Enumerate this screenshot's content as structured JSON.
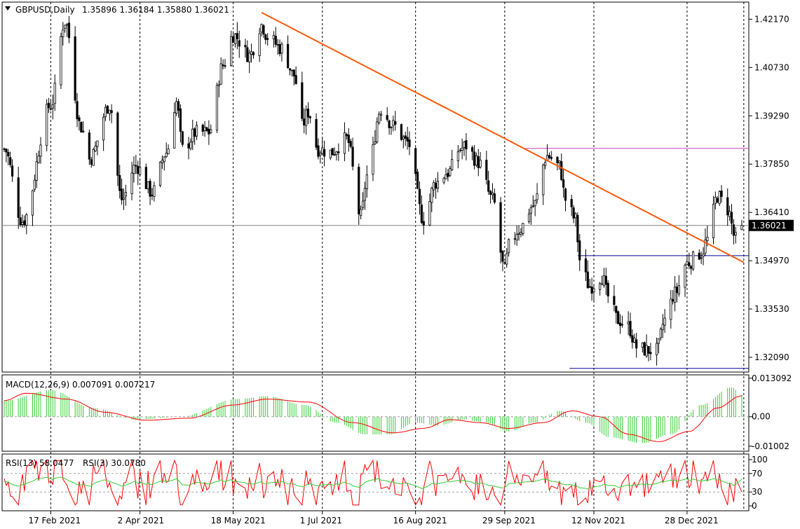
{
  "main_panel": {
    "symbol_timeframe": "GBPUSD,Daily",
    "ohlc": "1.35896 1.36184 1.35880 1.36021",
    "current_price": "1.36021",
    "price_labels": [
      "1.42170",
      "1.40730",
      "1.39290",
      "1.37850",
      "1.36410",
      "1.34970",
      "1.33530",
      "1.32090"
    ]
  },
  "macd_panel": {
    "label": "MACD(12,26,9) 0.007091 0.007217",
    "axis_labels": [
      "0.013092",
      "0.00",
      "-0.01002"
    ]
  },
  "rsi_panel": {
    "label_rsi13": "RSI(13) 58.0477",
    "label_rsi3": "RSI(3) 30.0780",
    "axis_labels": [
      "100",
      "70",
      "30",
      "0"
    ]
  },
  "date_labels": [
    "17 Feb 2021",
    "2 Apr 2021",
    "18 May 2021",
    "1 Jul 2021",
    "16 Aug 2021",
    "29 Sep 2021",
    "12 Nov 2021",
    "28 Dec 2021"
  ],
  "colors": {
    "background": "#ffffff",
    "candle_up": "#000000",
    "candle_down": "#000000",
    "trendline": "#ff5a0a",
    "support_line": "#00009c",
    "resistance_line": "#c040c0",
    "price_line": "#808080",
    "macd_histogram": "#32cd32",
    "macd_signal": "#ff0000",
    "rsi13_line": "#32cd32",
    "rsi3_line": "#ff0000",
    "current_price_box": "#000000"
  },
  "chart_data": {
    "type": "candlestick",
    "title": "GBPUSD,Daily",
    "ylim": [
      1.3165,
      1.4268
    ],
    "levels": {
      "resistance": 1.3832,
      "support_high": 1.3512,
      "support_low": 1.3176,
      "current": 1.36021
    },
    "trendline": {
      "from": [
        "2021-06-01",
        1.4237
      ],
      "to": [
        "2022-01-25",
        1.3492
      ]
    },
    "anchors": [
      [
        "2021-01-25",
        1.383
      ],
      [
        "2021-02-03",
        1.3615
      ],
      [
        "2021-02-17",
        1.396
      ],
      [
        "2021-02-24",
        1.421
      ],
      [
        "2021-03-04",
        1.3895
      ],
      [
        "2021-03-08",
        1.38
      ],
      [
        "2021-03-18",
        1.396
      ],
      [
        "2021-03-24",
        1.368
      ],
      [
        "2021-03-31",
        1.378
      ],
      [
        "2021-04-08",
        1.37
      ],
      [
        "2021-04-15",
        1.382
      ],
      [
        "2021-04-20",
        1.397
      ],
      [
        "2021-04-23",
        1.383
      ],
      [
        "2021-04-30",
        1.388
      ],
      [
        "2021-05-06",
        1.388
      ],
      [
        "2021-05-13",
        1.408
      ],
      [
        "2021-05-18",
        1.417
      ],
      [
        "2021-05-26",
        1.411
      ],
      [
        "2021-06-01",
        1.42
      ],
      [
        "2021-06-04",
        1.4165
      ],
      [
        "2021-06-11",
        1.413
      ],
      [
        "2021-06-17",
        1.405
      ],
      [
        "2021-06-21",
        1.39
      ],
      [
        "2021-06-24",
        1.394
      ],
      [
        "2021-06-29",
        1.383
      ],
      [
        "2021-07-05",
        1.382
      ],
      [
        "2021-07-13",
        1.386
      ],
      [
        "2021-07-20",
        1.363
      ],
      [
        "2021-07-23",
        1.375
      ],
      [
        "2021-07-30",
        1.395
      ],
      [
        "2021-08-05",
        1.39
      ],
      [
        "2021-08-12",
        1.385
      ],
      [
        "2021-08-20",
        1.362
      ],
      [
        "2021-08-26",
        1.373
      ],
      [
        "2021-09-01",
        1.376
      ],
      [
        "2021-09-07",
        1.383
      ],
      [
        "2021-09-10",
        1.384
      ],
      [
        "2021-09-16",
        1.379
      ],
      [
        "2021-09-23",
        1.368
      ],
      [
        "2021-09-29",
        1.347
      ],
      [
        "2021-10-01",
        1.354
      ],
      [
        "2021-10-06",
        1.359
      ],
      [
        "2021-10-13",
        1.366
      ],
      [
        "2021-10-20",
        1.381
      ],
      [
        "2021-10-26",
        1.378
      ],
      [
        "2021-10-29",
        1.368
      ],
      [
        "2021-11-03",
        1.362
      ],
      [
        "2021-11-05",
        1.35
      ],
      [
        "2021-11-10",
        1.342
      ],
      [
        "2021-11-16",
        1.345
      ],
      [
        "2021-11-19",
        1.339
      ],
      [
        "2021-11-24",
        1.332
      ],
      [
        "2021-11-29",
        1.33
      ],
      [
        "2021-12-03",
        1.324
      ],
      [
        "2021-12-08",
        1.323
      ],
      [
        "2021-12-13",
        1.323
      ],
      [
        "2021-12-17",
        1.332
      ],
      [
        "2021-12-22",
        1.34
      ],
      [
        "2021-12-28",
        1.349
      ],
      [
        "2022-01-04",
        1.352
      ],
      [
        "2022-01-07",
        1.356
      ],
      [
        "2022-01-12",
        1.369
      ],
      [
        "2022-01-17",
        1.365
      ],
      [
        "2022-01-21",
        1.356
      ],
      [
        "2022-01-24",
        1.3602
      ]
    ],
    "macd": {
      "ylim": [
        -0.0115,
        0.014
      ],
      "anchors": [
        [
          "2021-01-25",
          0.0055
        ],
        [
          "2021-02-17",
          0.009
        ],
        [
          "2021-03-10",
          0.003
        ],
        [
          "2021-03-31",
          -0.001
        ],
        [
          "2021-04-22",
          0.0
        ],
        [
          "2021-05-20",
          0.006
        ],
        [
          "2021-06-04",
          0.007
        ],
        [
          "2021-06-22",
          0.004
        ],
        [
          "2021-07-08",
          -0.002
        ],
        [
          "2021-07-22",
          -0.006
        ],
        [
          "2021-08-03",
          -0.006
        ],
        [
          "2021-08-16",
          -0.002
        ],
        [
          "2021-08-27",
          -0.003
        ],
        [
          "2021-09-09",
          -0.001
        ],
        [
          "2021-09-20",
          -0.002
        ],
        [
          "2021-10-01",
          -0.005
        ],
        [
          "2021-10-14",
          -0.002
        ],
        [
          "2021-10-26",
          0.002
        ],
        [
          "2021-11-08",
          -0.002
        ],
        [
          "2021-11-20",
          -0.007
        ],
        [
          "2021-12-06",
          -0.009
        ],
        [
          "2021-12-20",
          -0.006
        ],
        [
          "2022-01-04",
          0.004
        ],
        [
          "2022-01-19",
          0.01
        ],
        [
          "2022-01-24",
          0.0075
        ]
      ],
      "signal_anchors": [
        [
          "2021-01-25",
          0.0055
        ],
        [
          "2021-02-05",
          0.008
        ],
        [
          "2021-02-25",
          0.006
        ],
        [
          "2021-03-16",
          0.0015
        ],
        [
          "2021-04-05",
          -0.0012
        ],
        [
          "2021-04-26",
          -0.0005
        ],
        [
          "2021-05-18",
          0.004
        ],
        [
          "2021-06-04",
          0.006
        ],
        [
          "2021-06-24",
          0.005
        ],
        [
          "2021-07-16",
          -0.002
        ],
        [
          "2021-08-05",
          -0.0055
        ],
        [
          "2021-08-20",
          -0.004
        ],
        [
          "2021-09-02",
          -0.001
        ],
        [
          "2021-09-17",
          -0.002
        ],
        [
          "2021-10-01",
          -0.004
        ],
        [
          "2021-10-18",
          -0.002
        ],
        [
          "2021-11-01",
          0.002
        ],
        [
          "2021-11-15",
          0.0
        ],
        [
          "2021-11-29",
          -0.006
        ],
        [
          "2021-12-14",
          -0.0085
        ],
        [
          "2021-12-29",
          -0.005
        ],
        [
          "2022-01-12",
          0.003
        ],
        [
          "2022-01-24",
          0.0072
        ]
      ]
    },
    "rsi": {
      "ylim": [
        0,
        100
      ]
    }
  }
}
